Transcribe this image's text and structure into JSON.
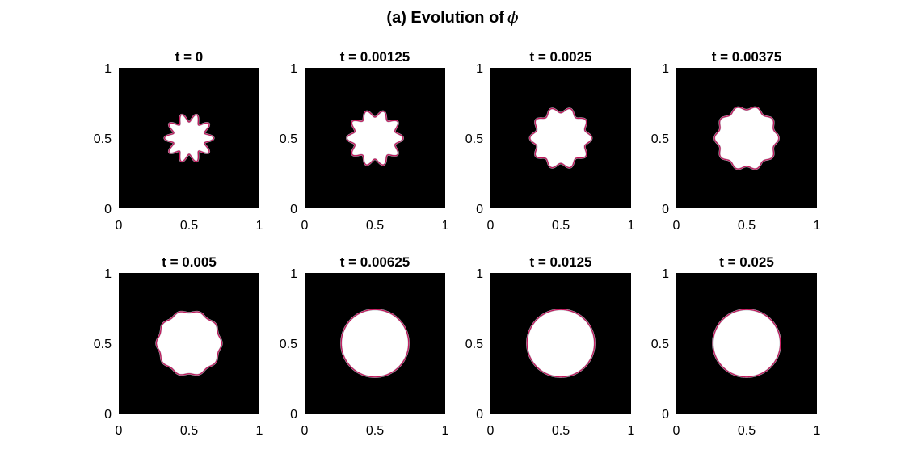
{
  "figure": {
    "title_text": "(a) Evolution of",
    "title_symbol": "ϕ"
  },
  "chart_data": [
    {
      "type": "heatmap",
      "title": "t = 0",
      "t": 0,
      "lobes": 10,
      "mean_radius": 0.145,
      "amplitude": 0.03,
      "xlim": [
        0,
        1
      ],
      "ylim": [
        0,
        1
      ],
      "xticks": [
        "0",
        "0.5",
        "1"
      ],
      "yticks": [
        "0",
        "0.5",
        "1"
      ]
    },
    {
      "type": "heatmap",
      "title": "t = 0.00125",
      "t": 0.00125,
      "lobes": 10,
      "mean_radius": 0.175,
      "amplitude": 0.025,
      "xlim": [
        0,
        1
      ],
      "ylim": [
        0,
        1
      ],
      "xticks": [
        "0",
        "0.5",
        "1"
      ],
      "yticks": [
        "0",
        "0.5",
        "1"
      ]
    },
    {
      "type": "heatmap",
      "title": "t = 0.0025",
      "t": 0.0025,
      "lobes": 10,
      "mean_radius": 0.2,
      "amplitude": 0.02,
      "xlim": [
        0,
        1
      ],
      "ylim": [
        0,
        1
      ],
      "xticks": [
        "0",
        "0.5",
        "1"
      ],
      "yticks": [
        "0",
        "0.5",
        "1"
      ]
    },
    {
      "type": "heatmap",
      "title": "t = 0.00375",
      "t": 0.00375,
      "lobes": 10,
      "mean_radius": 0.215,
      "amplitude": 0.014,
      "xlim": [
        0,
        1
      ],
      "ylim": [
        0,
        1
      ],
      "xticks": [
        "0",
        "0.5",
        "1"
      ],
      "yticks": [
        "0",
        "0.5",
        "1"
      ]
    },
    {
      "type": "heatmap",
      "title": "t = 0.005",
      "t": 0.005,
      "lobes": 10,
      "mean_radius": 0.225,
      "amplitude": 0.008,
      "xlim": [
        0,
        1
      ],
      "ylim": [
        0,
        1
      ],
      "xticks": [
        "0",
        "0.5",
        "1"
      ],
      "yticks": [
        "0",
        "0.5",
        "1"
      ]
    },
    {
      "type": "heatmap",
      "title": "t = 0.00625",
      "t": 0.00625,
      "lobes": 10,
      "mean_radius": 0.24,
      "amplitude": 0,
      "xlim": [
        0,
        1
      ],
      "ylim": [
        0,
        1
      ],
      "xticks": [
        "0",
        "0.5",
        "1"
      ],
      "yticks": [
        "0",
        "0.5",
        "1"
      ]
    },
    {
      "type": "heatmap",
      "title": "t = 0.0125",
      "t": 0.0125,
      "lobes": 10,
      "mean_radius": 0.24,
      "amplitude": 0,
      "xlim": [
        0,
        1
      ],
      "ylim": [
        0,
        1
      ],
      "xticks": [
        "0",
        "0.5",
        "1"
      ],
      "yticks": [
        "0",
        "0.5",
        "1"
      ]
    },
    {
      "type": "heatmap",
      "title": "t = 0.025",
      "t": 0.025,
      "lobes": 10,
      "mean_radius": 0.24,
      "amplitude": 0,
      "xlim": [
        0,
        1
      ],
      "ylim": [
        0,
        1
      ],
      "xticks": [
        "0",
        "0.5",
        "1"
      ],
      "yticks": [
        "0",
        "0.5",
        "1"
      ]
    }
  ],
  "colors": {
    "background": "#000000",
    "droplet": "#ffffff",
    "interface": "#c2185b",
    "text": "#000000"
  }
}
